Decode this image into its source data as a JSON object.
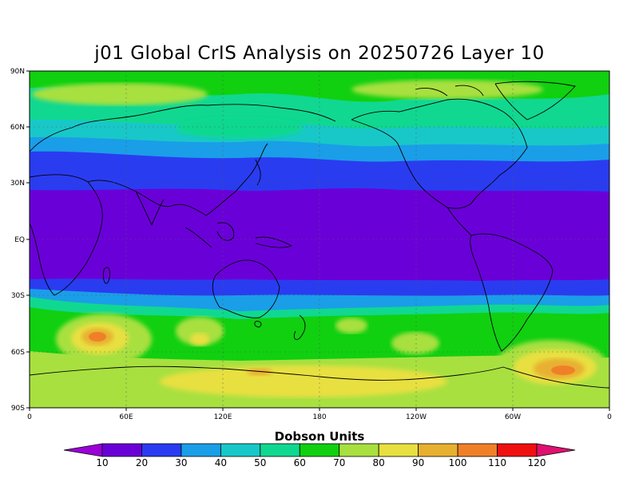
{
  "title": "j01 Global CrIS Analysis on 20250726 Layer 10",
  "lat_ticks": [
    "90N",
    "60N",
    "30N",
    "EQ",
    "30S",
    "60S",
    "90S"
  ],
  "lon_ticks": [
    "0",
    "60E",
    "120E",
    "180",
    "120W",
    "60W",
    "0"
  ],
  "colorbar": {
    "title": "Dobson Units",
    "labels": [
      "10",
      "20",
      "30",
      "40",
      "50",
      "60",
      "70",
      "80",
      "90",
      "100",
      "110",
      "120"
    ],
    "colors": [
      "#9b00d6",
      "#6a00d8",
      "#2a3cf0",
      "#1a9ee8",
      "#18c8c8",
      "#10d890",
      "#10d010",
      "#a8e040",
      "#e8e040",
      "#e8b030",
      "#f08028",
      "#f01010",
      "#e01070"
    ]
  },
  "legend_colors": {
    "bg_purple": "#6a00d8",
    "blue": "#2a3cf0",
    "lightblue": "#1a9ee8",
    "cyan": "#18c8c8",
    "teal": "#10d890",
    "green": "#10d010",
    "yellowgreen": "#a8e040",
    "yellow": "#e8e040",
    "gold": "#e8b030",
    "orange": "#f08028"
  }
}
